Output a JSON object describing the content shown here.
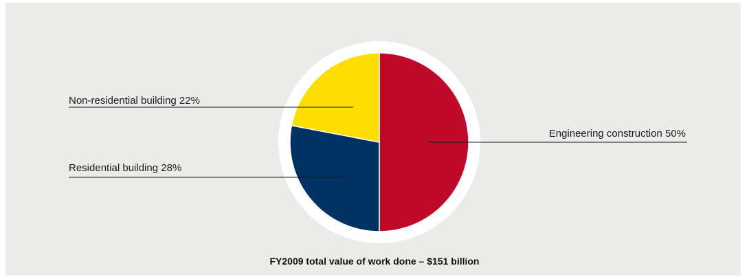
{
  "chart_data": {
    "type": "pie",
    "title": "FY2009 total value of work done – $151 billion",
    "slices": [
      {
        "label": "Engineering construction 50%",
        "value": 50,
        "color": "#c0092a"
      },
      {
        "label": "Residential building 28%",
        "value": 28,
        "color": "#003363"
      },
      {
        "label": "Non-residential building 22%",
        "value": 22,
        "color": "#fedd00"
      }
    ]
  }
}
